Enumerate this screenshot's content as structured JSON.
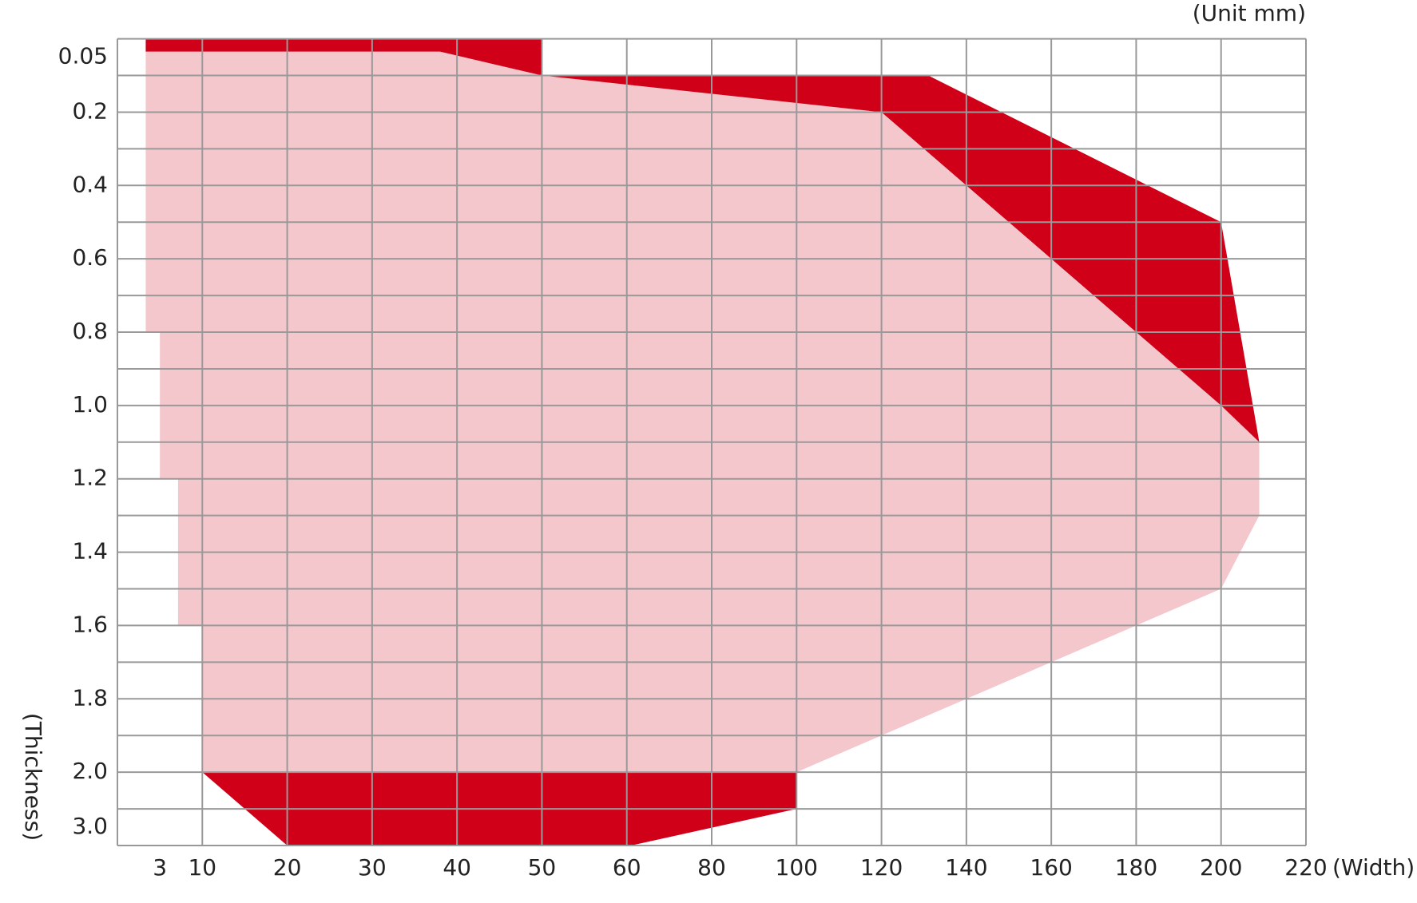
{
  "chart_data": {
    "type": "area",
    "unit_label": "(Unit mm)",
    "xlabel": "(Width)",
    "ylabel": "(Thickness)",
    "xlim": [
      0,
      220
    ],
    "xticks": [
      3,
      10,
      20,
      30,
      40,
      50,
      60,
      80,
      100,
      120,
      140,
      160,
      180,
      200,
      220
    ],
    "ylim": [
      0,
      3.333
    ],
    "yticks": [
      0.05,
      0.2,
      0.4,
      0.6,
      0.8,
      {
        "value": 1,
        "label": "1.0"
      },
      1.2,
      1.4,
      1.6,
      1.8,
      {
        "value": 2,
        "label": "2.0"
      },
      {
        "value": 3,
        "label": "3.0"
      }
    ],
    "grid": true,
    "areas": [
      {
        "color": "#f4c7cd",
        "x": [
          2,
          38,
          50,
          120,
          200,
          209,
          209,
          200,
          100,
          10,
          10,
          6,
          6,
          3,
          3,
          2
        ],
        "y": [
          0.035,
          0.035,
          0.1,
          0.2,
          1.0,
          1.1,
          1.3,
          1.5,
          2.0,
          2.0,
          1.6,
          1.6,
          1.2,
          1.2,
          0.8,
          0.8
        ]
      },
      {
        "color": "#d10019",
        "x": [
          2,
          50,
          50,
          38,
          2
        ],
        "y": [
          0,
          0,
          0.1,
          0.035,
          0.035
        ]
      },
      {
        "color": "#d10019",
        "x": [
          50,
          131,
          200,
          209,
          200,
          120
        ],
        "y": [
          0.1,
          0.1,
          0.5,
          1.1,
          1.0,
          0.2
        ]
      },
      {
        "color": "#d10019",
        "x": [
          10,
          100,
          100,
          61,
          20
        ],
        "y": [
          2.0,
          2.0,
          2.667,
          3.333,
          3.333
        ]
      }
    ]
  }
}
